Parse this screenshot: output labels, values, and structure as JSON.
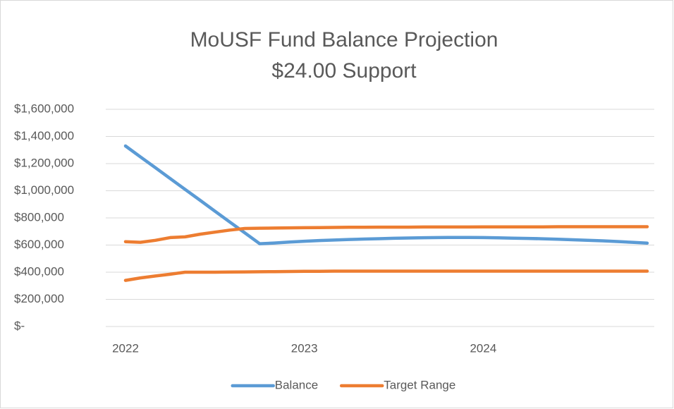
{
  "chart_data": {
    "type": "line",
    "title": "MoUSF Fund Balance Projection",
    "subtitle": "$24.00 Support",
    "x": [
      2022,
      2022.083,
      2022.167,
      2022.25,
      2022.333,
      2022.417,
      2022.5,
      2022.583,
      2022.667,
      2022.75,
      2022.833,
      2022.917,
      2023,
      2023.083,
      2023.167,
      2023.25,
      2023.333,
      2023.417,
      2023.5,
      2023.583,
      2023.667,
      2023.75,
      2023.833,
      2023.917,
      2024,
      2024.083,
      2024.167,
      2024.25,
      2024.333,
      2024.417,
      2024.5,
      2024.583,
      2024.667,
      2024.75,
      2024.833,
      2024.917
    ],
    "xlim": [
      2022,
      2024.917
    ],
    "xticks": [
      2022,
      2023,
      2024
    ],
    "series": [
      {
        "name": "Balance",
        "color": "#5b9bd5",
        "values": [
          1330000,
          1250000,
          1170000,
          1090000,
          1010000,
          930000,
          850000,
          770000,
          690000,
          610000,
          615000,
          622000,
          628000,
          633000,
          637000,
          641000,
          644000,
          647000,
          650000,
          652000,
          654000,
          655000,
          656000,
          656000,
          655000,
          653000,
          651000,
          649000,
          646000,
          643000,
          639000,
          635000,
          631000,
          626000,
          620000,
          614000
        ]
      },
      {
        "name": "Target Range",
        "color": "#ed7d31",
        "values": [
          625000,
          620000,
          635000,
          655000,
          660000,
          680000,
          695000,
          710000,
          722000,
          724000,
          725000,
          727000,
          728000,
          729000,
          730000,
          731000,
          731000,
          732000,
          732000,
          732000,
          733000,
          733000,
          733000,
          733000,
          734000,
          734000,
          734000,
          734000,
          734000,
          735000,
          735000,
          735000,
          735000,
          735000,
          735000,
          735000
        ],
        "low_values": [
          340000,
          358000,
          372000,
          385000,
          400000,
          400000,
          400000,
          401000,
          402000,
          403000,
          404000,
          405000,
          406000,
          407000,
          408000,
          408000,
          408000,
          408000,
          408000,
          408000,
          408000,
          408000,
          408000,
          408000,
          408000,
          408000,
          408000,
          408000,
          408000,
          408000,
          408000,
          408000,
          408000,
          408000,
          408000,
          408000
        ]
      }
    ],
    "ylim": [
      0,
      1600000
    ],
    "yticks": [
      {
        "value": 0,
        "label": "$-"
      },
      {
        "value": 200000,
        "label": "$200,000"
      },
      {
        "value": 400000,
        "label": "$400,000"
      },
      {
        "value": 600000,
        "label": "$600,000"
      },
      {
        "value": 800000,
        "label": "$800,000"
      },
      {
        "value": 1000000,
        "label": "$1,000,000"
      },
      {
        "value": 1200000,
        "label": "$1,200,000"
      },
      {
        "value": 1400000,
        "label": "$1,400,000"
      },
      {
        "value": 1600000,
        "label": "$1,600,000"
      }
    ],
    "grid": true,
    "legend": "bottom"
  }
}
